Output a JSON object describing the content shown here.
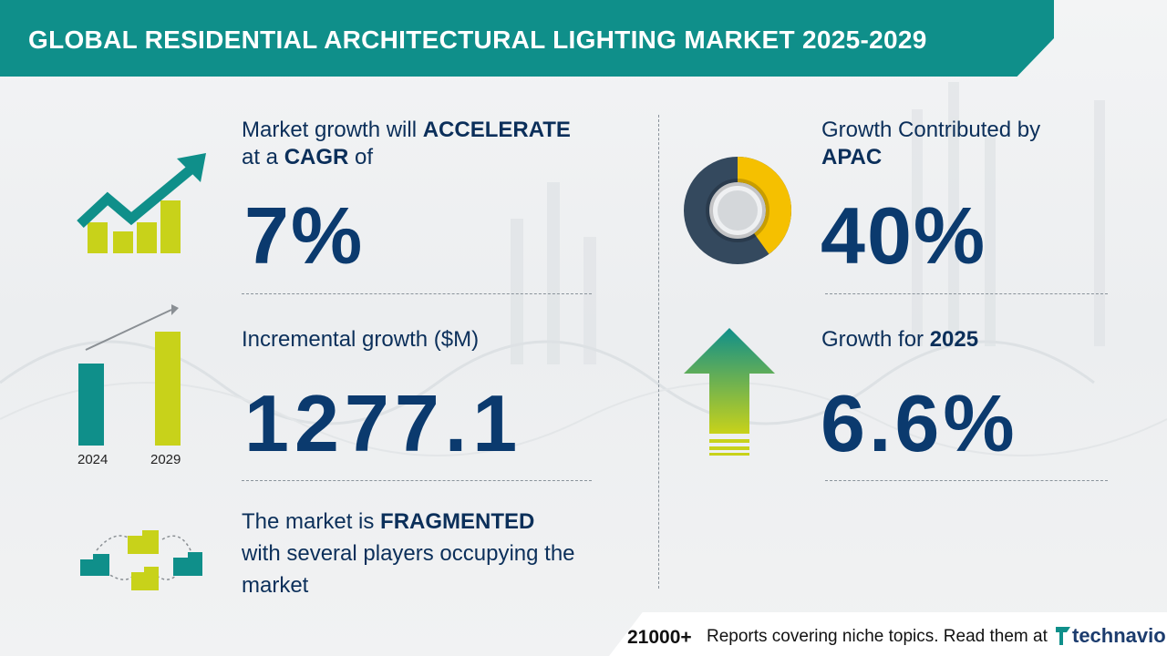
{
  "header": {
    "title": "GLOBAL RESIDENTIAL ARCHITECTURAL LIGHTING MARKET 2025-2029"
  },
  "cagr": {
    "line1_pre": "Market growth will ",
    "line1_bold": "ACCELERATE",
    "line2_pre": "at a ",
    "line2_bold": "CAGR",
    "line2_post": " of",
    "value": "7%"
  },
  "incremental": {
    "label": "Incremental growth ($M)",
    "value": "1277.1",
    "year_start": "2024",
    "year_end": "2029"
  },
  "fragmented": {
    "line1_pre": "The market is ",
    "line1_bold": "FRAGMENTED",
    "line2": "with several players occupying the",
    "line3": "market"
  },
  "region": {
    "label_pre": "Growth Contributed by",
    "label_bold": "APAC",
    "value": "40%",
    "share": 0.4
  },
  "yoy": {
    "label_pre": "Growth for ",
    "label_bold": "2025",
    "value": "6.6%"
  },
  "footer": {
    "count": "21000+",
    "text": "Reports covering niche topics. Read them at",
    "brand": "technavio"
  },
  "colors": {
    "teal": "#0f8f8a",
    "navy": "#0b3a6e",
    "yellow_green": "#c8d21a",
    "gold": "#f5c000",
    "slate": "#34495e"
  }
}
